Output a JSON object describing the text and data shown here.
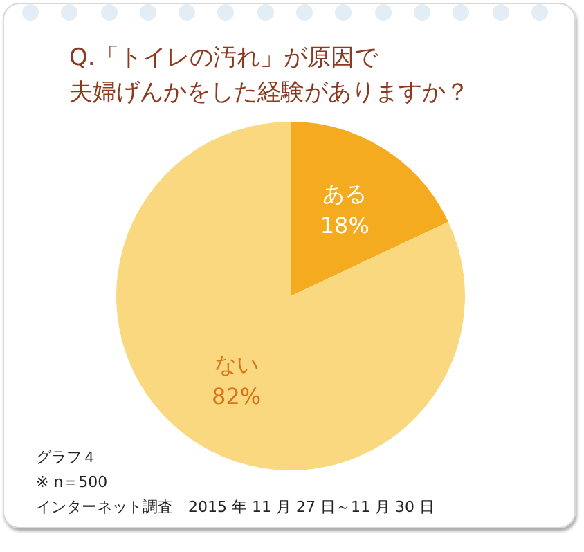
{
  "chart_data": {
    "type": "pie",
    "title": "Q.「トイレの汚れ」が原因で",
    "subtitle": "夫婦げんかをした経験がありますか？",
    "categories": [
      "ある",
      "ない"
    ],
    "values": [
      18,
      82
    ],
    "value_labels": [
      "18%",
      "82%"
    ],
    "colors": [
      "#f5ab1f",
      "#f9d87f"
    ],
    "legend": false,
    "annotations": [
      "グラフ４",
      "※ n＝500",
      "インターネット調査　2015 年 11 月 27 日～11 月 30 日"
    ]
  }
}
